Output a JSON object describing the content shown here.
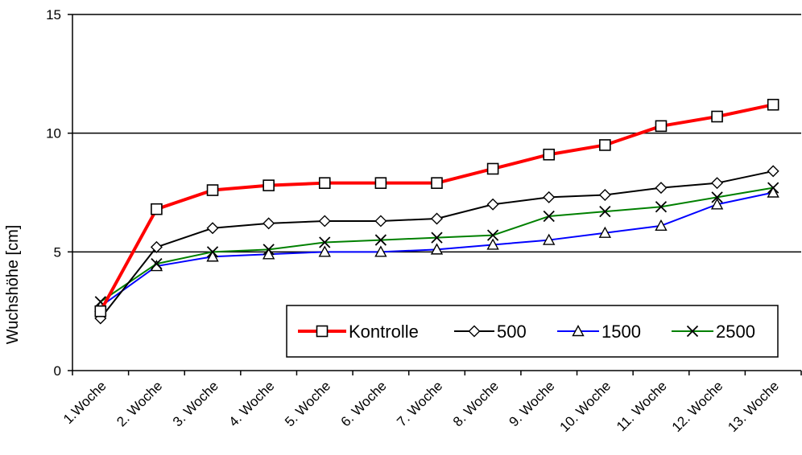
{
  "chart_data": {
    "type": "line",
    "title": "",
    "xlabel": "",
    "ylabel": "Wuchshöhe [cm]",
    "ylim": [
      0,
      15
    ],
    "yticks": [
      "0",
      "5",
      "10",
      "15"
    ],
    "grid": "horizontal at 5, 10, 15",
    "legend_position": "bottom-right",
    "categories": [
      "1.Woche",
      "2. Woche",
      "3. Woche",
      "4. Woche",
      "5. Woche",
      "6. Woche",
      "7. Woche",
      "8. Woche",
      "9. Woche",
      "10. Woche",
      "11. Woche",
      "12. Woche",
      "13. Woche"
    ],
    "series": [
      {
        "name": "Kontrolle",
        "color": "#ff0000",
        "marker": "square",
        "values": [
          2.5,
          6.8,
          7.6,
          7.8,
          7.9,
          7.9,
          7.9,
          8.5,
          9.1,
          9.5,
          10.3,
          10.7,
          11.2
        ]
      },
      {
        "name": "500",
        "color": "#000000",
        "marker": "diamond",
        "values": [
          2.2,
          5.2,
          6.0,
          6.2,
          6.3,
          6.3,
          6.4,
          7.0,
          7.3,
          7.4,
          7.7,
          7.9,
          8.4
        ]
      },
      {
        "name": "1500",
        "color": "#0000ff",
        "marker": "triangle",
        "values": [
          2.7,
          4.4,
          4.8,
          4.9,
          5.0,
          5.0,
          5.1,
          5.3,
          5.5,
          5.8,
          6.1,
          7.0,
          7.5
        ]
      },
      {
        "name": "2500",
        "color": "#008000",
        "marker": "x",
        "values": [
          2.9,
          4.5,
          5.0,
          5.1,
          5.4,
          5.5,
          5.6,
          5.7,
          6.5,
          6.7,
          6.9,
          7.3,
          7.7
        ]
      }
    ]
  }
}
